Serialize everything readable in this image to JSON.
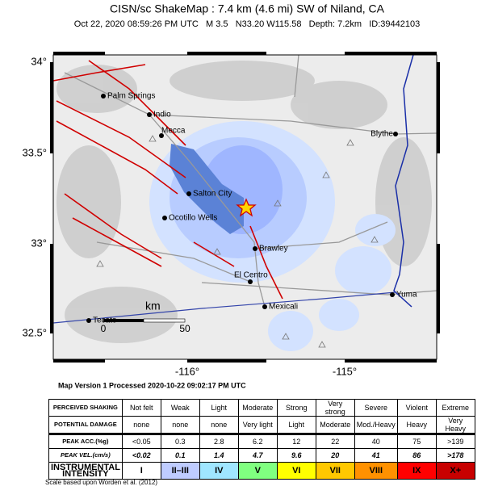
{
  "header": {
    "title": "CISN/sc ShakeMap : 7.4 km (4.6 mi) SW of Niland, CA",
    "subtitle": "Oct 22, 2020 08:59:26 PM UTC   M 3.5   N33.20 W115.58   Depth: 7.2km   ID:39442103"
  },
  "map": {
    "lat_labels": [
      "34°",
      "33.5°",
      "33°",
      "32.5°"
    ],
    "lon_labels": [
      "-116°",
      "-115°"
    ],
    "cities": [
      "Palm Springs",
      "Indio",
      "Mecca",
      "Blythe",
      "Salton City",
      "Ocotillo Wells",
      "Brawley",
      "El Centro",
      "Mexicali",
      "Yuma",
      "Tecate"
    ],
    "scale": {
      "unit": "km",
      "ticks": [
        "0",
        "50"
      ]
    },
    "version": "Map Version 1 Processed 2020-10-22 09:02:17 PM UTC"
  },
  "table": {
    "rows": [
      [
        "PERCEIVED SHAKING",
        "Not felt",
        "Weak",
        "Light",
        "Moderate",
        "Strong",
        "Very strong",
        "Severe",
        "Violent",
        "Extreme"
      ],
      [
        "POTENTIAL DAMAGE",
        "none",
        "none",
        "none",
        "Very light",
        "Light",
        "Moderate",
        "Mod./Heavy",
        "Heavy",
        "Very Heavy"
      ],
      [
        "PEAK ACC.(%g)",
        "<0.05",
        "0.3",
        "2.8",
        "6.2",
        "12",
        "22",
        "40",
        "75",
        ">139"
      ],
      [
        "PEAK VEL.(cm/s)",
        "<0.02",
        "0.1",
        "1.4",
        "4.7",
        "9.6",
        "20",
        "41",
        "86",
        ">178"
      ],
      [
        "INSTRUMENTAL INTENSITY",
        "I",
        "II–III",
        "IV",
        "V",
        "VI",
        "VII",
        "VIII",
        "IX",
        "X+"
      ]
    ]
  },
  "footnote": "Scale based upon Worden et al. (2012)"
}
